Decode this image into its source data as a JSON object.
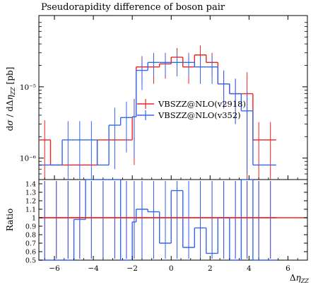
{
  "chart_data": {
    "type": "line",
    "title": "Pseudorapidity difference of boson pair",
    "xlabel": "Δη_ZZ",
    "ylabel": "dσ/dΔη_ZZ [pb]",
    "ratio_ylabel": "Ratio",
    "yscale": "log",
    "ylim": [
      5e-07,
      0.0001
    ],
    "ratio_ylim": [
      0.5,
      1.45
    ],
    "xlim": [
      -6.8,
      7.0
    ],
    "x_ticks": [
      -6,
      -4,
      -2,
      0,
      2,
      4,
      6
    ],
    "y_ticks": [
      {
        "value": 1e-05,
        "label": "10⁻⁵"
      },
      {
        "value": 1e-06,
        "label": "10⁻⁶"
      }
    ],
    "ratio_ticks": [
      0.5,
      0.6,
      0.7,
      0.8,
      0.9,
      1,
      1.1,
      1.2,
      1.3,
      1.4
    ],
    "bin_edges": [
      -6.8,
      -6.2,
      -5.6,
      -5.0,
      -4.4,
      -3.8,
      -3.2,
      -2.6,
      -2.0,
      -1.8,
      -1.2,
      -0.6,
      0.0,
      0.6,
      1.2,
      1.8,
      2.4,
      3.0,
      3.6,
      4.2,
      4.8,
      5.4
    ],
    "series": [
      {
        "name": "VBSZZ@NLO(v2918)",
        "color": "#ee2222",
        "values": [
          1.8e-06,
          8e-07,
          8e-07,
          8e-07,
          8e-07,
          1.8e-06,
          1.8e-06,
          1.8e-06,
          3.8e-06,
          1.9e-05,
          1.9e-05,
          2.1e-05,
          2.6e-05,
          1.9e-05,
          2.8e-05,
          2.2e-05,
          1.1e-05,
          8e-06,
          8e-06,
          1.8e-06,
          1.8e-06
        ],
        "errors": [
          1.6e-06,
          0,
          0,
          0,
          0,
          0,
          0,
          0,
          3e-06,
          8e-06,
          8e-06,
          8e-06,
          9e-06,
          8e-06,
          1e-05,
          8e-06,
          6e-06,
          5e-06,
          8e-06,
          1.4e-06,
          1.4e-06
        ]
      },
      {
        "name": "VBSZZ@NLO(v352)",
        "color": "#3366ee",
        "values": [
          8e-07,
          8e-07,
          1.8e-06,
          1.8e-06,
          1.8e-06,
          8e-07,
          2.9e-06,
          3.7e-06,
          3.8e-06,
          1.7e-05,
          2.2e-05,
          2.2e-05,
          2.2e-05,
          2.2e-05,
          1.9e-05,
          1.9e-05,
          1.1e-05,
          8e-06,
          4.6e-06,
          8e-07,
          8e-07
        ],
        "errors": [
          0,
          0,
          1.5e-06,
          1.5e-06,
          1.5e-06,
          0,
          2.2e-06,
          2.5e-06,
          2.8e-06,
          8e-06,
          8e-06,
          8e-06,
          8e-06,
          8e-06,
          8e-06,
          8e-06,
          6e-06,
          5e-06,
          4e-06,
          0,
          0
        ]
      }
    ],
    "ratio_series": [
      {
        "name": "VBSZZ@NLO(v2918)",
        "color": "#ee2222",
        "values": [
          1.0,
          1.0,
          1.0,
          1.0,
          1.0,
          1.0,
          1.0,
          1.0,
          1.0,
          1.0,
          1.0,
          1.0,
          1.0,
          1.0,
          1.0,
          1.0,
          1.0,
          1.0,
          1.0,
          1.0,
          1.0
        ]
      },
      {
        "name": "VBSZZ@NLO(v352)",
        "color": "#3366ee",
        "values": [
          0.5,
          0.5,
          0.5,
          0.98,
          1.52,
          1.6,
          1.6,
          0.5,
          0.95,
          1.1,
          1.07,
          0.7,
          1.32,
          0.65,
          0.88,
          0.58,
          1.0,
          0.5,
          1.48,
          0.5,
          0.5
        ]
      }
    ],
    "legend_position": "center"
  }
}
